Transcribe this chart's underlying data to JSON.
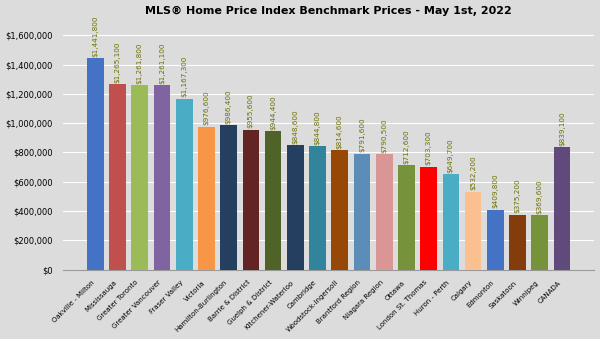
{
  "categories": [
    "Oakville - Milton",
    "Mississauga",
    "Greater Toronto",
    "Greater Vancouver",
    "Fraser Valley",
    "Victoria",
    "Hamilton-Burlington",
    "Barrie & District",
    "Guelph & District",
    "Kitchener-Waterloo",
    "Cambridge",
    "Woodstock-Ingersoll",
    "Brantford Region",
    "Niagara Region",
    "Ottawa",
    "London St. Thomas",
    "Huron - Perth",
    "Calgary",
    "Edmonton",
    "Saskatoon",
    "Winnipeg",
    "CANADA"
  ],
  "values": [
    1441800,
    1265100,
    1261800,
    1261100,
    1167300,
    976600,
    986400,
    955600,
    944400,
    848600,
    844800,
    814600,
    791600,
    790500,
    712600,
    703300,
    649700,
    532200,
    409800,
    375200,
    369600,
    839100
  ],
  "bar_colors": [
    "#4472C4",
    "#C0504D",
    "#9BBB59",
    "#8064A2",
    "#4BACC6",
    "#F79646",
    "#243F60",
    "#632523",
    "#4F6228",
    "#243F60",
    "#31849B",
    "#974706",
    "#5B8DB8",
    "#D99694",
    "#76933C",
    "#FF0000",
    "#4BACC6",
    "#FAC090",
    "#4472C4",
    "#843C0C",
    "#76933C",
    "#604A7B"
  ],
  "label_color": "#6B7000",
  "title": "MLS® Home Price Index Benchmark Prices - May 1st, 2022",
  "ylim": [
    0,
    1700000
  ],
  "yticks": [
    0,
    200000,
    400000,
    600000,
    800000,
    1000000,
    1200000,
    1400000,
    1600000
  ],
  "bg_color": "#DCDCDC",
  "white_color": "#FFFFFF"
}
